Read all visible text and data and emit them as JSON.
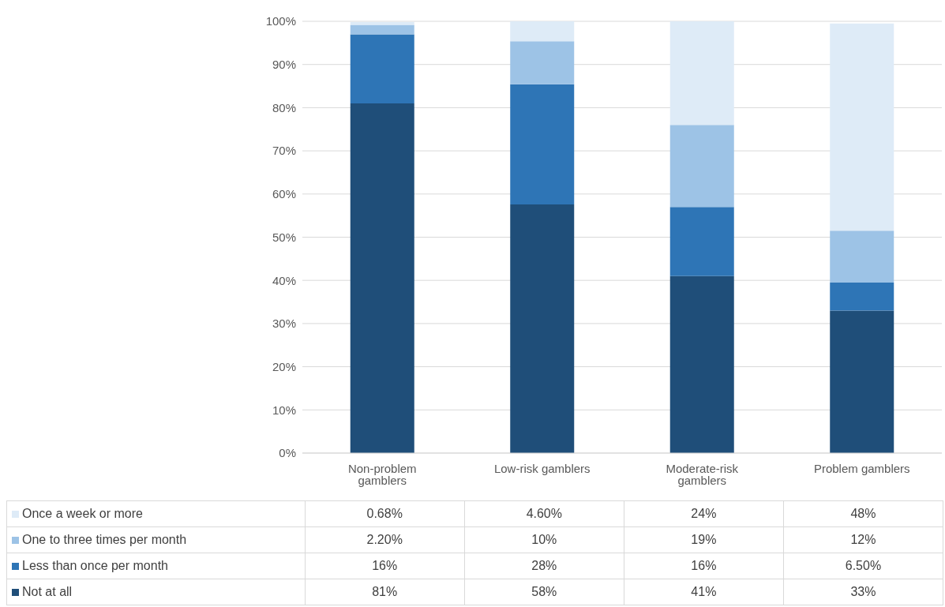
{
  "chart_data": {
    "type": "bar",
    "stacked": true,
    "categories": [
      "Non-problem gamblers",
      "Low-risk gamblers",
      "Moderate-risk gamblers",
      "Problem gamblers"
    ],
    "series": [
      {
        "name": "Not at all",
        "color": "#1f4e79",
        "values": [
          81,
          57.6,
          41,
          33
        ],
        "value_labels": [
          "81%",
          "58%",
          "41%",
          "33%"
        ]
      },
      {
        "name": "Less than once per month",
        "color": "#2e75b6",
        "values": [
          16,
          27.8,
          16,
          6.5
        ],
        "value_labels": [
          "16%",
          "28%",
          "16%",
          "6.50%"
        ]
      },
      {
        "name": "One to three times per month",
        "color": "#9dc3e6",
        "values": [
          2.2,
          10,
          19,
          12
        ],
        "value_labels": [
          "2.20%",
          "10%",
          "19%",
          "12%"
        ]
      },
      {
        "name": "Once a week or more",
        "color": "#deebf7",
        "values": [
          0.68,
          4.6,
          24,
          48
        ],
        "value_labels": [
          "0.68%",
          "4.60%",
          "24%",
          "48%"
        ]
      }
    ],
    "ylim": [
      0,
      100
    ],
    "yticks": [
      {
        "value": 0,
        "label": "0%"
      },
      {
        "value": 10,
        "label": "10%"
      },
      {
        "value": 20,
        "label": "20%"
      },
      {
        "value": 30,
        "label": "30%"
      },
      {
        "value": 40,
        "label": "40%"
      },
      {
        "value": 50,
        "label": "50%"
      },
      {
        "value": 60,
        "label": "60%"
      },
      {
        "value": 70,
        "label": "70%"
      },
      {
        "value": 80,
        "label": "80%"
      },
      {
        "value": 90,
        "label": "90%"
      },
      {
        "value": 100,
        "label": "100%"
      }
    ],
    "grid": "y",
    "legend": "bottom"
  }
}
